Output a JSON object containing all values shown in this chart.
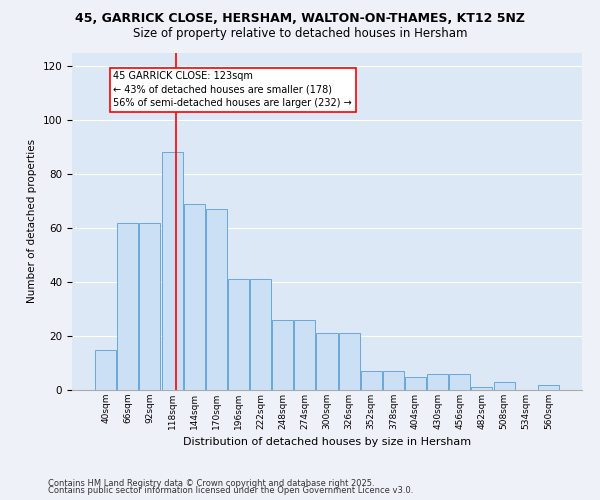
{
  "title1": "45, GARRICK CLOSE, HERSHAM, WALTON-ON-THAMES, KT12 5NZ",
  "title2": "Size of property relative to detached houses in Hersham",
  "xlabel": "Distribution of detached houses by size in Hersham",
  "ylabel": "Number of detached properties",
  "bar_heights": [
    15,
    62,
    62,
    88,
    69,
    67,
    41,
    41,
    26,
    26,
    21,
    21,
    7,
    7,
    5,
    6,
    6,
    1,
    3,
    0,
    2
  ],
  "bar_labels": [
    "40sqm",
    "66sqm",
    "92sqm",
    "118sqm",
    "144sqm",
    "170sqm",
    "196sqm",
    "222sqm",
    "248sqm",
    "274sqm",
    "300sqm",
    "326sqm",
    "352sqm",
    "378sqm",
    "404sqm",
    "430sqm",
    "456sqm",
    "482sqm",
    "508sqm",
    "534sqm",
    "560sqm"
  ],
  "bar_color": "#cce0f5",
  "bar_edge_color": "#6aa8d8",
  "background_color": "#dce8f5",
  "fig_background": "#eef2f8",
  "annotation_text": "45 GARRICK CLOSE: 123sqm\n← 43% of detached houses are smaller (178)\n56% of semi-detached houses are larger (232) →",
  "ylim": [
    0,
    125
  ],
  "yticks": [
    0,
    20,
    40,
    60,
    80,
    100,
    120
  ],
  "footer1": "Contains HM Land Registry data © Crown copyright and database right 2025.",
  "footer2": "Contains public sector information licensed under the Open Government Licence v3.0."
}
